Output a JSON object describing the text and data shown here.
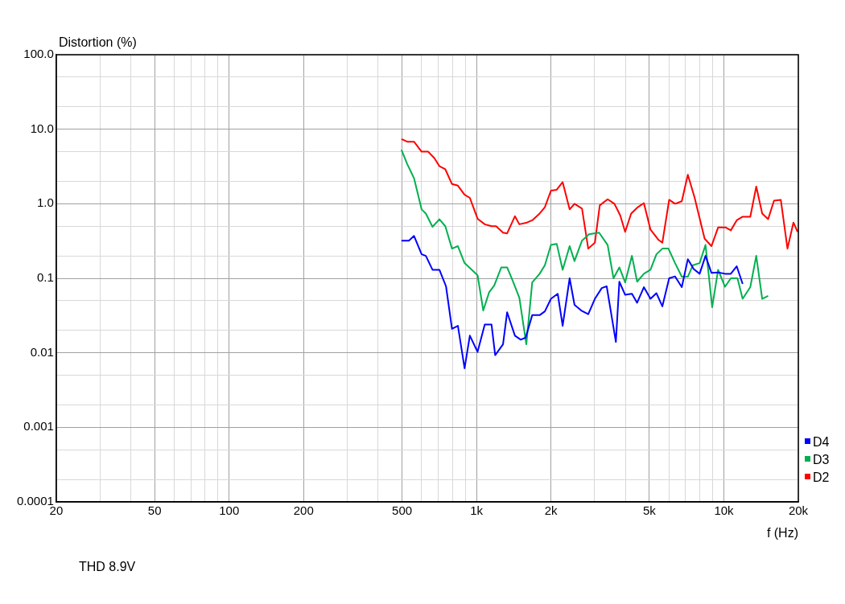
{
  "chart_data": {
    "type": "line",
    "ylabel": "Distortion (%)",
    "xlabel": "f (Hz)",
    "annotations": [
      "THD 8.9V"
    ],
    "log": "xy",
    "grid": true,
    "legend": "bottom right",
    "marker": "none",
    "line_style": "solid",
    "xlim": [
      20,
      20000
    ],
    "ylim": [
      0.0001,
      100
    ],
    "xticks": [
      20,
      {
        "value": 30,
        "label": null
      },
      {
        "value": 40,
        "label": null
      },
      50,
      {
        "value": 60,
        "label": null
      },
      {
        "value": 70,
        "label": null
      },
      {
        "value": 80,
        "label": null
      },
      {
        "value": 90,
        "label": null
      },
      100,
      200,
      {
        "value": 300,
        "label": null
      },
      {
        "value": 400,
        "label": null
      },
      500,
      {
        "value": 600,
        "label": null
      },
      {
        "value": 700,
        "label": null
      },
      {
        "value": 800,
        "label": null
      },
      {
        "value": 900,
        "label": null
      },
      {
        "value": 1000,
        "label": "1k"
      },
      {
        "value": 2000,
        "label": "2k"
      },
      {
        "value": 3000,
        "label": null
      },
      {
        "value": 4000,
        "label": null
      },
      {
        "value": 5000,
        "label": "5k"
      },
      {
        "value": 6000,
        "label": null
      },
      {
        "value": 7000,
        "label": null
      },
      {
        "value": 8000,
        "label": null
      },
      {
        "value": 9000,
        "label": null
      },
      {
        "value": 10000,
        "label": "10k"
      },
      {
        "value": 20000,
        "label": "20k"
      }
    ],
    "yticks": [
      0.0001,
      {
        "value": 0.0002,
        "label": null
      },
      {
        "value": 0.0005,
        "label": null
      },
      0.001,
      {
        "value": 0.002,
        "label": null
      },
      {
        "value": 0.005,
        "label": null
      },
      0.01,
      {
        "value": 0.02,
        "label": null
      },
      {
        "value": 0.05,
        "label": null
      },
      0.1,
      {
        "value": 0.2,
        "label": null
      },
      {
        "value": 0.5,
        "label": null
      },
      {
        "value": 1,
        "label": "1.0"
      },
      {
        "value": 2,
        "label": null
      },
      {
        "value": 5,
        "label": null
      },
      {
        "value": 10,
        "label": "10.0"
      },
      {
        "value": 20,
        "label": null
      },
      {
        "value": 50,
        "label": null
      },
      {
        "value": 100,
        "label": "100.0"
      }
    ],
    "series": [
      {
        "name": "D4",
        "color": "#0000ff",
        "x": [
          497,
          533,
          559,
          600,
          624,
          664,
          708,
          753,
          796,
          841,
          895,
          940,
          1010,
          1080,
          1150,
          1190,
          1280,
          1330,
          1430,
          1510,
          1580,
          1680,
          1800,
          1890,
          2000,
          2130,
          2230,
          2380,
          2490,
          2650,
          2830,
          3010,
          3210,
          3360,
          3660,
          3780,
          3990,
          4250,
          4460,
          4750,
          5050,
          5340,
          5640,
          6010,
          6350,
          6760,
          7150,
          7550,
          7980,
          8430,
          8910,
          9480,
          10110,
          10670,
          11270,
          11910
        ],
        "values": [
          0.32,
          0.32,
          0.37,
          0.21,
          0.2,
          0.13,
          0.13,
          0.078,
          0.021,
          0.023,
          0.0062,
          0.017,
          0.0103,
          0.024,
          0.024,
          0.0093,
          0.013,
          0.035,
          0.017,
          0.015,
          0.016,
          0.032,
          0.032,
          0.036,
          0.053,
          0.062,
          0.023,
          0.1,
          0.044,
          0.037,
          0.033,
          0.053,
          0.074,
          0.078,
          0.014,
          0.09,
          0.06,
          0.062,
          0.047,
          0.076,
          0.053,
          0.063,
          0.042,
          0.1,
          0.106,
          0.076,
          0.18,
          0.133,
          0.115,
          0.2,
          0.118,
          0.12,
          0.115,
          0.115,
          0.145,
          0.084
        ]
      },
      {
        "name": "D3",
        "color": "#00b050",
        "x": [
          497,
          525,
          559,
          600,
          624,
          664,
          708,
          748,
          796,
          841,
          895,
          1010,
          1065,
          1125,
          1180,
          1260,
          1330,
          1400,
          1490,
          1590,
          1680,
          1800,
          1890,
          2000,
          2110,
          2230,
          2380,
          2490,
          2670,
          2850,
          3130,
          3390,
          3580,
          3780,
          3990,
          4250,
          4460,
          4750,
          5050,
          5340,
          5640,
          5970,
          6350,
          6760,
          7150,
          7500,
          7980,
          8430,
          8970,
          9480,
          10110,
          10670,
          11350,
          11910,
          12790,
          13520,
          14290,
          15100
        ],
        "values": [
          5.3,
          3.4,
          2.2,
          0.84,
          0.74,
          0.49,
          0.62,
          0.5,
          0.25,
          0.27,
          0.16,
          0.11,
          0.037,
          0.065,
          0.08,
          0.14,
          0.14,
          0.093,
          0.055,
          0.013,
          0.088,
          0.115,
          0.15,
          0.28,
          0.29,
          0.13,
          0.27,
          0.17,
          0.32,
          0.39,
          0.41,
          0.28,
          0.1,
          0.14,
          0.088,
          0.2,
          0.09,
          0.115,
          0.13,
          0.21,
          0.25,
          0.25,
          0.16,
          0.105,
          0.105,
          0.15,
          0.16,
          0.28,
          0.041,
          0.13,
          0.077,
          0.1,
          0.1,
          0.053,
          0.076,
          0.2,
          0.053,
          0.058
        ]
      },
      {
        "name": "D2",
        "color": "#ff0000",
        "x": [
          497,
          525,
          559,
          600,
          638,
          675,
          708,
          748,
          796,
          841,
          895,
          940,
          1010,
          1080,
          1150,
          1200,
          1280,
          1330,
          1430,
          1490,
          1600,
          1680,
          1800,
          1890,
          2000,
          2110,
          2230,
          2380,
          2490,
          2670,
          2830,
          3010,
          3150,
          3390,
          3610,
          3810,
          3990,
          4220,
          4490,
          4750,
          5050,
          5430,
          5640,
          6010,
          6350,
          6760,
          7150,
          7610,
          8360,
          8910,
          9480,
          10180,
          10670,
          11270,
          11910,
          12790,
          13520,
          14290,
          15100,
          15950,
          16990,
          18080,
          19110,
          19860
        ],
        "values": [
          7.4,
          6.8,
          6.8,
          5.0,
          5.0,
          4.1,
          3.2,
          2.9,
          1.84,
          1.75,
          1.32,
          1.2,
          0.63,
          0.53,
          0.5,
          0.5,
          0.41,
          0.4,
          0.68,
          0.53,
          0.56,
          0.6,
          0.74,
          0.9,
          1.5,
          1.54,
          1.95,
          0.84,
          1.0,
          0.86,
          0.25,
          0.3,
          0.95,
          1.15,
          1.0,
          0.7,
          0.42,
          0.74,
          0.9,
          1.02,
          0.45,
          0.33,
          0.3,
          1.13,
          1.0,
          1.08,
          2.45,
          1.22,
          0.34,
          0.27,
          0.48,
          0.48,
          0.44,
          0.6,
          0.67,
          0.67,
          1.7,
          0.74,
          0.62,
          1.1,
          1.13,
          0.25,
          0.56,
          0.42
        ]
      }
    ]
  }
}
